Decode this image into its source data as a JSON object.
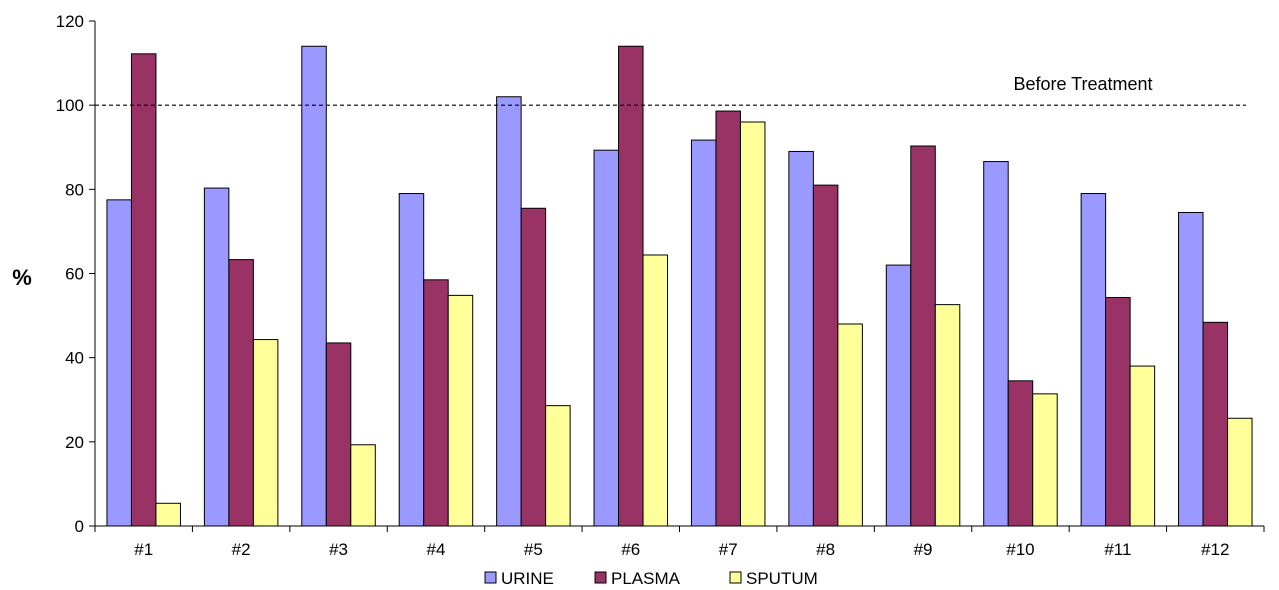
{
  "chart_data": {
    "type": "bar",
    "title": "",
    "xlabel": "",
    "ylabel": "%",
    "ylim": [
      0,
      120
    ],
    "yticks": [
      0,
      20,
      40,
      60,
      80,
      100,
      120
    ],
    "grid": false,
    "legend_position": "bottom",
    "categories": [
      "#1",
      "#2",
      "#3",
      "#4",
      "#5",
      "#6",
      "#7",
      "#8",
      "#9",
      "#10",
      "#11",
      "#12"
    ],
    "series": [
      {
        "name": "URINE",
        "color": "#9999ff",
        "values": [
          77.5,
          80.3,
          114,
          79,
          102,
          89.3,
          91.7,
          89,
          62,
          86.6,
          79,
          74.5
        ]
      },
      {
        "name": "PLASMA",
        "color": "#993366",
        "values": [
          112.2,
          63.3,
          43.5,
          58.5,
          75.5,
          114,
          98.6,
          81,
          90.3,
          34.5,
          54.3,
          48.4
        ]
      },
      {
        "name": "SPUTUM",
        "color": "#ffff99",
        "values": [
          5.4,
          44.3,
          19.3,
          54.8,
          28.6,
          64.4,
          96,
          48,
          52.6,
          31.4,
          38,
          25.6
        ]
      }
    ],
    "reference_line": {
      "value": 100,
      "label": "Before Treatment",
      "style": "dashed"
    }
  }
}
